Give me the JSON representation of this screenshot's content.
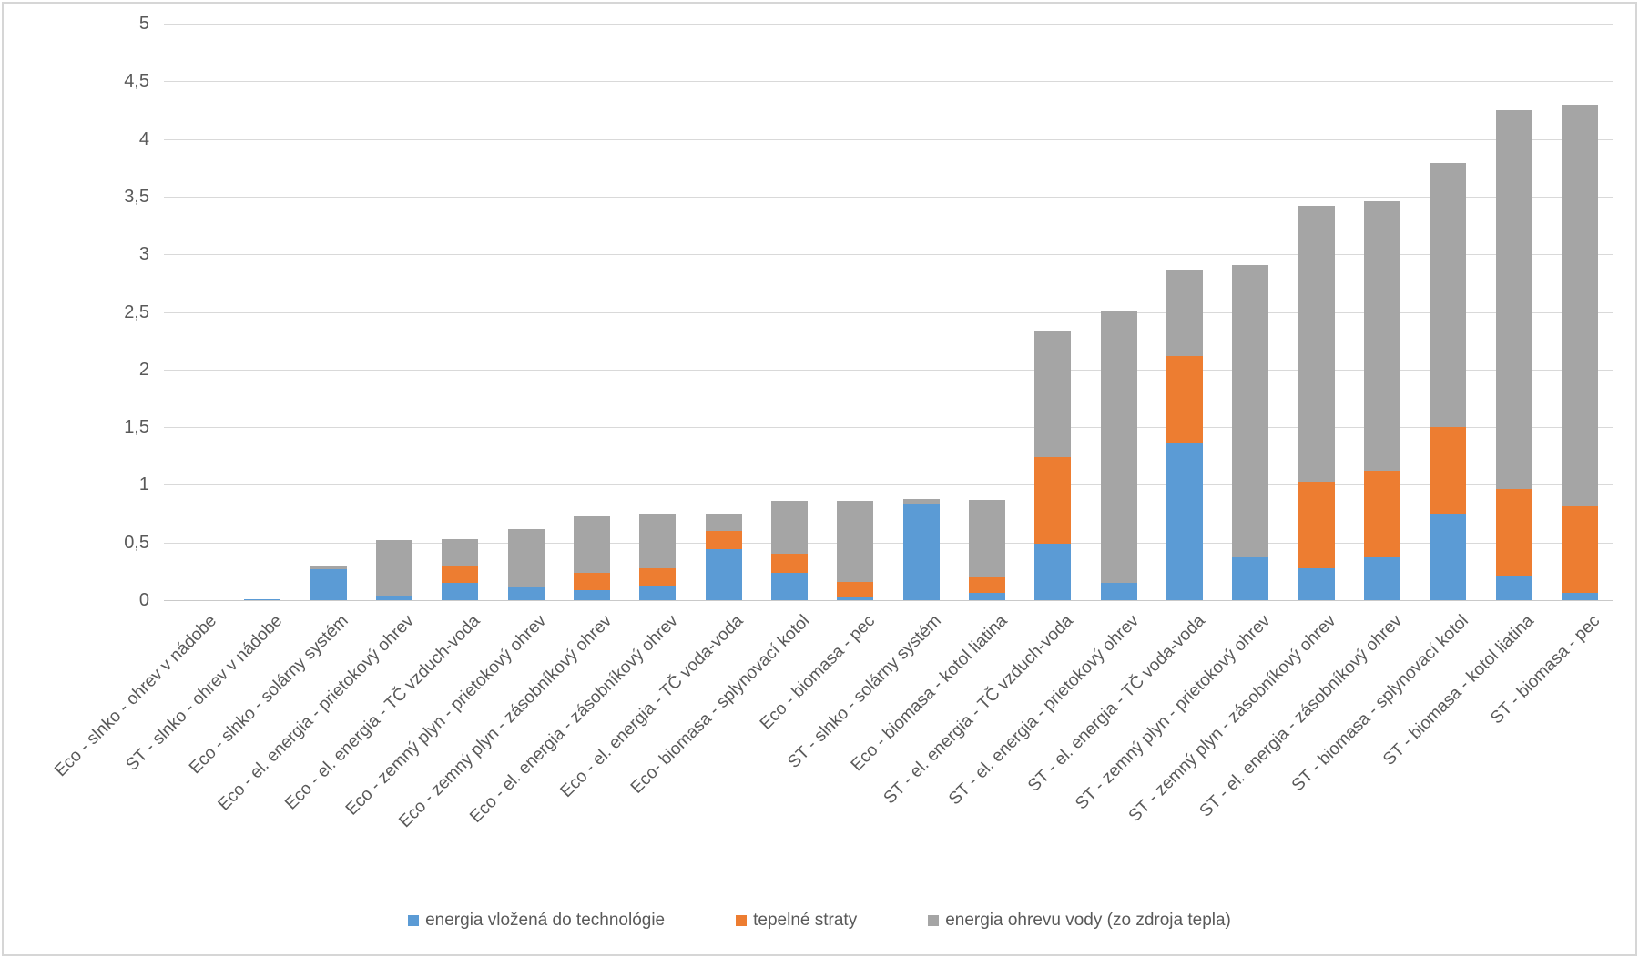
{
  "chart_data": {
    "type": "bar",
    "stacked": true,
    "title": "",
    "xlabel": "",
    "ylabel": "",
    "grid": "horizontal",
    "legend_position": "bottom",
    "ylim": [
      0,
      5
    ],
    "ytick_step": 0.5,
    "yticks": [
      {
        "value": 0,
        "label": "0"
      },
      {
        "value": 0.5,
        "label": "0,5"
      },
      {
        "value": 1,
        "label": "1"
      },
      {
        "value": 1.5,
        "label": "1,5"
      },
      {
        "value": 2,
        "label": "2"
      },
      {
        "value": 2.5,
        "label": "2,5"
      },
      {
        "value": 3,
        "label": "3"
      },
      {
        "value": 3.5,
        "label": "3,5"
      },
      {
        "value": 4,
        "label": "4"
      },
      {
        "value": 4.5,
        "label": "4,5"
      },
      {
        "value": 5,
        "label": "5"
      }
    ],
    "categories": [
      "Eco - slnko - ohrev v nádobe",
      "ST - slnko - ohrev v nádobe",
      "Eco - slnko - solárny systém",
      "Eco - el. energia - prietokový ohrev",
      "Eco - el. energia - TČ vzduch-voda",
      "Eco - zemný plyn - prietokový ohrev",
      "Eco - zemný plyn - zásobníkový ohrev",
      "Eco - el. energia - zásobníkový ohrev",
      "Eco - el. energia - TČ voda-voda",
      "Eco- biomasa - splynovací kotol",
      "Eco - biomasa - pec",
      "ST - slnko - solárny systém",
      "Eco - biomasa - kotol liatina",
      "ST - el. energia - TČ vzduch-voda",
      "ST - el. energia - prietokový ohrev",
      "ST - el. energia - TČ voda-voda",
      "ST - zemný plyn - prietokový ohrev",
      "ST - zemný plyn - zásobníkový ohrev",
      "ST - el. energia - zásobníkový ohrev",
      "ST - biomasa - splynovací kotol",
      "ST - biomasa - kotol liatina",
      "ST - biomasa - pec"
    ],
    "series": [
      {
        "name": "energia vložená do technológie",
        "color": "#5b9bd5",
        "values": [
          0,
          0.01,
          0.27,
          0.04,
          0.15,
          0.11,
          0.09,
          0.12,
          0.44,
          0.24,
          0.02,
          0.83,
          0.06,
          0.49,
          0.15,
          1.37,
          0.37,
          0.28,
          0.37,
          0.75,
          0.21,
          0.06
        ]
      },
      {
        "name": "tepelné straty",
        "color": "#ed7d31",
        "values": [
          0,
          0,
          0,
          0,
          0.15,
          0,
          0.15,
          0.16,
          0.16,
          0.16,
          0.14,
          0,
          0.14,
          0.75,
          0,
          0.75,
          0,
          0.75,
          0.75,
          0.75,
          0.75,
          0.75
        ]
      },
      {
        "name": "energia ohrevu vody (zo zdroja tepla)",
        "color": "#a5a5a5",
        "values": [
          0,
          0,
          0.02,
          0.48,
          0.23,
          0.51,
          0.49,
          0.47,
          0.15,
          0.46,
          0.7,
          0.05,
          0.67,
          1.1,
          2.36,
          0.74,
          2.54,
          2.39,
          2.34,
          2.29,
          3.29,
          3.49
        ]
      }
    ],
    "totals": [
      0,
      0.01,
      0.29,
      0.52,
      0.53,
      0.62,
      0.73,
      0.75,
      0.75,
      0.86,
      0.86,
      0.88,
      0.87,
      2.34,
      2.51,
      2.86,
      2.91,
      3.42,
      3.46,
      3.79,
      4.25,
      4.3
    ]
  },
  "colors": {
    "gridline": "#d9d9d9",
    "axis_line": "#c9c9c9",
    "tick_text": "#595959",
    "frame_border": "#d6d6d6",
    "background": "#ffffff"
  }
}
